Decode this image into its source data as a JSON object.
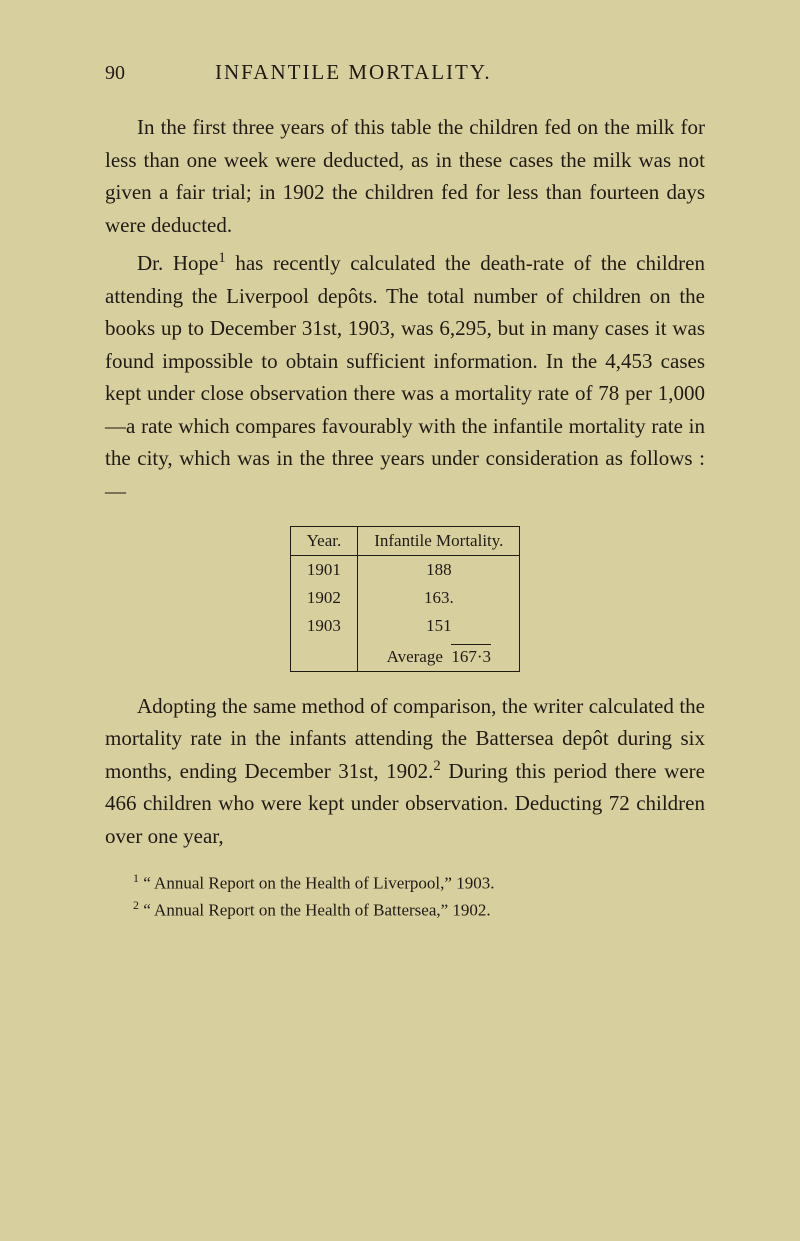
{
  "page": {
    "number": "90",
    "running_head": "INFANTILE MORTALITY."
  },
  "paragraphs": {
    "p1": "In the first three years of this table the children fed on the milk for less than one week were deducted, as in these cases the milk was not given a fair trial; in 1902 the children fed for less than fourteen days were deducted.",
    "p2_a": "Dr. Hope",
    "p2_sup": "1",
    "p2_b": " has recently calculated the death-rate of the children attending the Liverpool depôts. The total number of children on the books up to December 31st, 1903, was 6,295, but in many cases it was found impossible to obtain sufficient information. In the 4,453 cases kept under close observation there was a mortality rate of 78 per 1,000—a rate which compares favourably with the infantile mortality rate in the city, which was in the three years under consideration as follows :—",
    "p3_a": "Adopting the same method of comparison, the writer calculated the mortality rate in the infants attending the Battersea depôt during six months, ending December 31st, 1902.",
    "p3_sup": "2",
    "p3_b": " During this period there were 466 children who were kept under observation. Deducting 72 children over one year,"
  },
  "table": {
    "type": "table",
    "columns": [
      "Year.",
      "Infantile Mortality."
    ],
    "rows": [
      {
        "year": "1901",
        "value": "188"
      },
      {
        "year": "1902",
        "value": "163."
      },
      {
        "year": "1903",
        "value": "151"
      }
    ],
    "average_label": "Average",
    "average_value": "167·3",
    "border_color": "#1f1a14",
    "font_size_pt": 13
  },
  "footnotes": {
    "f1_sup": "1",
    "f1_text": " “ Annual Report on the Health of Liverpool,” 1903.",
    "f2_sup": "2",
    "f2_text": " “ Annual Report on the Health of Battersea,” 1902."
  },
  "colors": {
    "background": "#d8cf9f",
    "text": "#1f1a14"
  }
}
